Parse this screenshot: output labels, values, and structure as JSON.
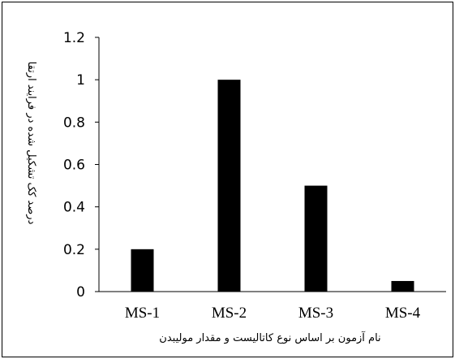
{
  "chart_data": {
    "type": "bar",
    "categories": [
      "MS-1",
      "MS-2",
      "MS-3",
      "MS-4"
    ],
    "values": [
      0.2,
      1.0,
      0.5,
      0.05
    ],
    "title": "",
    "xlabel": "نام آزمون بر اساس نوع کاتالیست و مقدار مولیبدن",
    "ylabel": "درصد کک تشکیل شده در فرایند ارتقا",
    "ylim": [
      0,
      1.2
    ],
    "yticks": [
      0,
      0.2,
      0.4,
      0.6,
      0.8,
      1,
      1.2
    ],
    "ytick_labels": [
      "0",
      "0.2",
      "0.4",
      "0.6",
      "0.8",
      "1",
      "1.2"
    ],
    "grid": false,
    "legend": "none",
    "bar_color": "#000000"
  }
}
